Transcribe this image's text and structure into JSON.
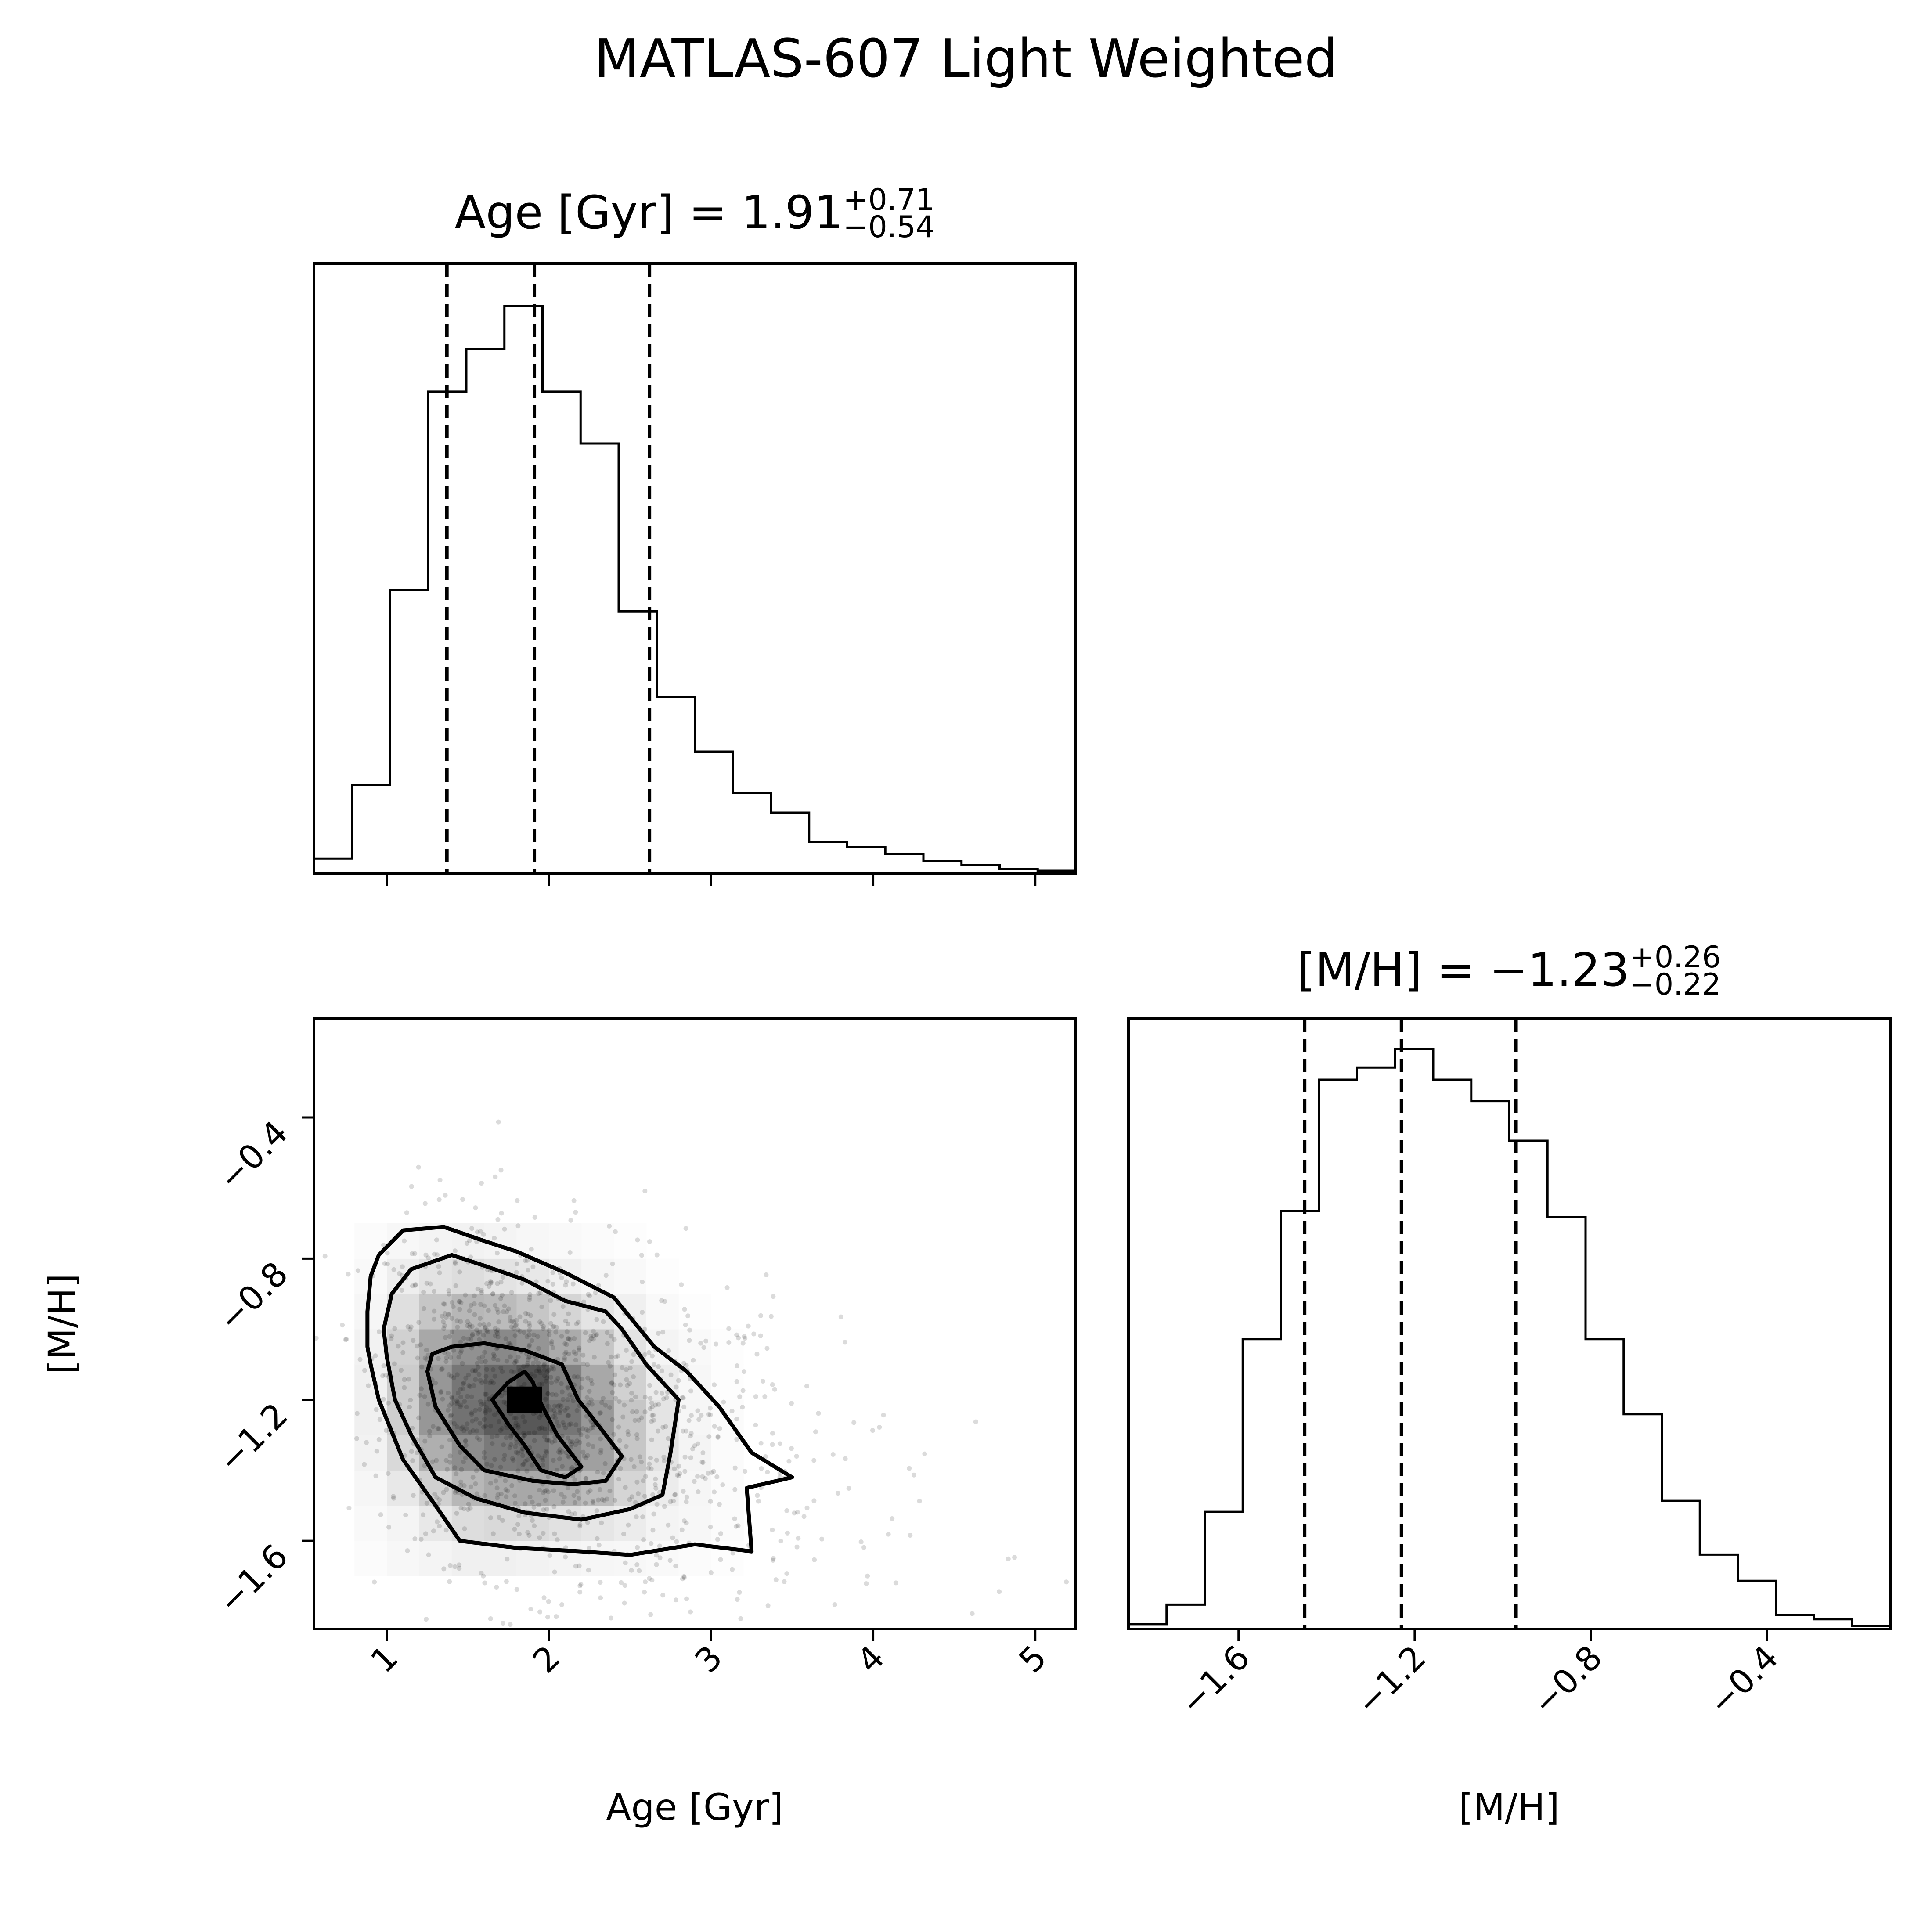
{
  "figure": {
    "suptitle": "MATLAS-607 Light Weighted"
  },
  "chart_data": [
    {
      "panel": "age-histogram",
      "type": "histogram",
      "title": {
        "prefix": "Age [Gyr] = ",
        "value": "1.91",
        "upper": "+0.71",
        "lower": "−0.54"
      },
      "xlabel": "Age [Gyr]",
      "xlim": [
        0.55,
        5.25
      ],
      "xticks": [
        1,
        2,
        3,
        4,
        5
      ],
      "xtick_labels": [
        "1",
        "2",
        "3",
        "4",
        "5"
      ],
      "ylim": [
        0,
        1.0
      ],
      "bin_edges": [
        0.55,
        0.785,
        1.02,
        1.255,
        1.49,
        1.725,
        1.96,
        2.195,
        2.43,
        2.665,
        2.9,
        3.135,
        3.37,
        3.605,
        3.84,
        4.075,
        4.31,
        4.545,
        4.78,
        5.015,
        5.25
      ],
      "counts": [
        0.025,
        0.145,
        0.465,
        0.79,
        0.86,
        0.93,
        0.79,
        0.705,
        0.43,
        0.29,
        0.2,
        0.132,
        0.1,
        0.052,
        0.044,
        0.032,
        0.021,
        0.014,
        0.008,
        0.005
      ],
      "quantiles": [
        1.37,
        1.91,
        2.62
      ]
    },
    {
      "panel": "age-mh-2d",
      "type": "scatter",
      "xlabel": "Age [Gyr]",
      "ylabel": "[M/H]",
      "xlim": [
        0.55,
        5.25
      ],
      "ylim": [
        -1.85,
        -0.12
      ],
      "xticks": [
        1,
        2,
        3,
        4,
        5
      ],
      "xtick_labels": [
        "1",
        "2",
        "3",
        "4",
        "5"
      ],
      "yticks": [
        -1.6,
        -1.2,
        -0.8,
        -0.4
      ],
      "ytick_labels": [
        "−1.6",
        "−1.2",
        "−0.8",
        "−0.4"
      ],
      "peak": [
        1.85,
        -1.2
      ],
      "density_grid": {
        "x_edges": [
          0.8,
          1.0,
          1.2,
          1.4,
          1.6,
          1.8,
          2.0,
          2.2,
          2.4,
          2.6,
          2.8,
          3.0,
          3.2
        ],
        "y_edges": [
          -1.7,
          -1.6,
          -1.5,
          -1.4,
          -1.3,
          -1.2,
          -1.1,
          -1.0,
          -0.9,
          -0.8,
          -0.7
        ],
        "values": [
          [
            0.02,
            0.04,
            0.06,
            0.08,
            0.08,
            0.07,
            0.06,
            0.05,
            0.04,
            0.03,
            0.02,
            0.01
          ],
          [
            0.03,
            0.06,
            0.12,
            0.18,
            0.2,
            0.19,
            0.16,
            0.13,
            0.1,
            0.06,
            0.04,
            0.02
          ],
          [
            0.05,
            0.12,
            0.25,
            0.38,
            0.45,
            0.46,
            0.42,
            0.36,
            0.22,
            0.1,
            0.05,
            0.02
          ],
          [
            0.07,
            0.2,
            0.42,
            0.6,
            0.7,
            0.72,
            0.62,
            0.5,
            0.3,
            0.14,
            0.06,
            0.02
          ],
          [
            0.08,
            0.26,
            0.55,
            0.74,
            0.86,
            0.88,
            0.72,
            0.54,
            0.3,
            0.14,
            0.05,
            0.02
          ],
          [
            0.08,
            0.27,
            0.55,
            0.72,
            0.8,
            0.9,
            0.66,
            0.46,
            0.24,
            0.1,
            0.04,
            0.01
          ],
          [
            0.07,
            0.24,
            0.46,
            0.58,
            0.62,
            0.56,
            0.44,
            0.3,
            0.15,
            0.06,
            0.03,
            0.01
          ],
          [
            0.05,
            0.17,
            0.3,
            0.38,
            0.36,
            0.3,
            0.22,
            0.14,
            0.08,
            0.03,
            0.01,
            0.0
          ],
          [
            0.03,
            0.09,
            0.15,
            0.18,
            0.15,
            0.12,
            0.08,
            0.05,
            0.03,
            0.01,
            0.0,
            0.0
          ],
          [
            0.02,
            0.04,
            0.06,
            0.07,
            0.06,
            0.04,
            0.03,
            0.02,
            0.01,
            0.0,
            0.0,
            0.0
          ]
        ]
      },
      "contours": [
        {
          "level": "outer",
          "points": [
            [
              0.9,
              -1.1
            ],
            [
              0.95,
              -1.2
            ],
            [
              1.1,
              -1.37
            ],
            [
              1.3,
              -1.5
            ],
            [
              1.45,
              -1.6
            ],
            [
              1.8,
              -1.62
            ],
            [
              2.2,
              -1.63
            ],
            [
              2.5,
              -1.64
            ],
            [
              2.9,
              -1.61
            ],
            [
              3.25,
              -1.63
            ],
            [
              3.22,
              -1.45
            ],
            [
              3.5,
              -1.42
            ],
            [
              3.25,
              -1.35
            ],
            [
              3.05,
              -1.22
            ],
            [
              2.85,
              -1.12
            ],
            [
              2.65,
              -1.05
            ],
            [
              2.4,
              -0.91
            ],
            [
              2.1,
              -0.84
            ],
            [
              1.8,
              -0.78
            ],
            [
              1.6,
              -0.75
            ],
            [
              1.35,
              -0.71
            ],
            [
              1.1,
              -0.72
            ],
            [
              0.95,
              -0.79
            ],
            [
              0.9,
              -0.85
            ],
            [
              0.88,
              -0.95
            ],
            [
              0.88,
              -1.05
            ],
            [
              0.9,
              -1.1
            ]
          ]
        },
        {
          "level": "middle",
          "points": [
            [
              1.0,
              -1.08
            ],
            [
              1.05,
              -1.2
            ],
            [
              1.15,
              -1.3
            ],
            [
              1.3,
              -1.42
            ],
            [
              1.55,
              -1.48
            ],
            [
              1.85,
              -1.52
            ],
            [
              2.2,
              -1.54
            ],
            [
              2.5,
              -1.51
            ],
            [
              2.7,
              -1.47
            ],
            [
              2.75,
              -1.35
            ],
            [
              2.8,
              -1.2
            ],
            [
              2.6,
              -1.1
            ],
            [
              2.45,
              -1.0
            ],
            [
              2.35,
              -0.95
            ],
            [
              2.1,
              -0.92
            ],
            [
              1.85,
              -0.86
            ],
            [
              1.6,
              -0.82
            ],
            [
              1.4,
              -0.79
            ],
            [
              1.15,
              -0.83
            ],
            [
              1.03,
              -0.9
            ],
            [
              0.98,
              -1.0
            ],
            [
              1.0,
              -1.08
            ]
          ]
        },
        {
          "level": "inner",
          "points": [
            [
              1.25,
              -1.12
            ],
            [
              1.3,
              -1.22
            ],
            [
              1.45,
              -1.33
            ],
            [
              1.6,
              -1.4
            ],
            [
              1.9,
              -1.43
            ],
            [
              2.15,
              -1.44
            ],
            [
              2.35,
              -1.43
            ],
            [
              2.45,
              -1.36
            ],
            [
              2.3,
              -1.27
            ],
            [
              2.18,
              -1.2
            ],
            [
              2.08,
              -1.1
            ],
            [
              1.85,
              -1.06
            ],
            [
              1.6,
              -1.04
            ],
            [
              1.4,
              -1.05
            ],
            [
              1.28,
              -1.07
            ],
            [
              1.25,
              -1.12
            ]
          ]
        },
        {
          "level": "core",
          "points": [
            [
              1.65,
              -1.2
            ],
            [
              1.75,
              -1.27
            ],
            [
              1.85,
              -1.33
            ],
            [
              1.95,
              -1.4
            ],
            [
              2.1,
              -1.42
            ],
            [
              2.2,
              -1.39
            ],
            [
              2.05,
              -1.3
            ],
            [
              1.95,
              -1.21
            ],
            [
              1.9,
              -1.15
            ],
            [
              1.85,
              -1.12
            ],
            [
              1.75,
              -1.15
            ],
            [
              1.65,
              -1.2
            ]
          ]
        }
      ]
    },
    {
      "panel": "mh-histogram",
      "type": "histogram",
      "title": {
        "prefix": "[M/H] = −1.23",
        "value": "",
        "upper": "+0.26",
        "lower": "−0.22"
      },
      "xlabel": "[M/H]",
      "xlim": [
        -1.85,
        -0.12
      ],
      "xticks": [
        -1.6,
        -1.2,
        -0.8,
        -0.4
      ],
      "xtick_labels": [
        "−1.6",
        "−1.2",
        "−0.8",
        "−0.4"
      ],
      "ylim": [
        0,
        1.0
      ],
      "bin_edges": [
        -1.85,
        -1.7635,
        -1.677,
        -1.5905,
        -1.504,
        -1.4175,
        -1.331,
        -1.2445,
        -1.158,
        -1.0715,
        -0.985,
        -0.8985,
        -0.812,
        -0.7255,
        -0.639,
        -0.5525,
        -0.466,
        -0.3795,
        -0.293,
        -0.2065,
        -0.12
      ],
      "counts": [
        0.008,
        0.04,
        0.192,
        0.475,
        0.685,
        0.9,
        0.92,
        0.95,
        0.9,
        0.865,
        0.8,
        0.675,
        0.475,
        0.352,
        0.21,
        0.122,
        0.079,
        0.023,
        0.016,
        0.005
      ],
      "quantiles": [
        -1.45,
        -1.23,
        -0.97
      ]
    }
  ]
}
